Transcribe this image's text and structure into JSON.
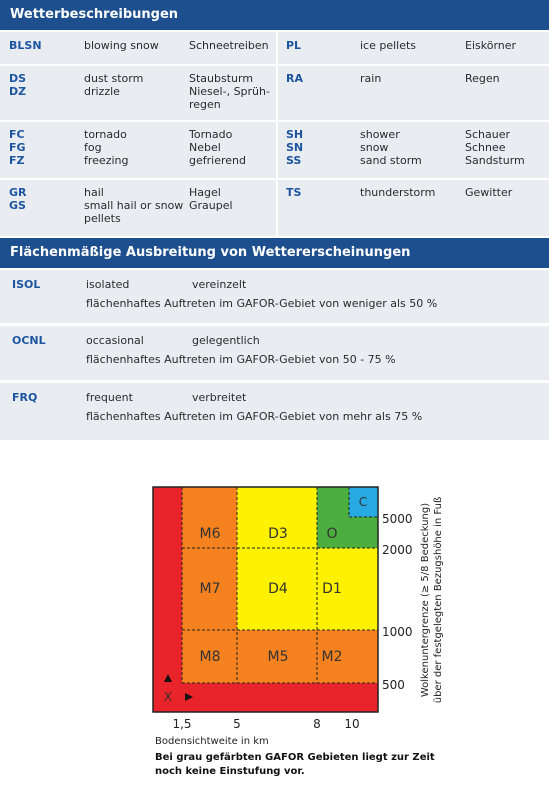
{
  "weather": {
    "title": "Wetterbeschreibungen",
    "rows": [
      {
        "left": {
          "codes": [
            "BLSN"
          ],
          "en": [
            "blowing snow"
          ],
          "de": [
            "Schneetreiben"
          ]
        },
        "right": {
          "codes": [
            "PL"
          ],
          "en": [
            "ice pellets"
          ],
          "de": [
            "Eiskörner"
          ]
        }
      },
      {
        "left": {
          "codes": [
            "DS",
            "DZ"
          ],
          "en": [
            "dust storm",
            "drizzle"
          ],
          "de": [
            "Staubsturm",
            "Niesel-, Sprüh-\nregen"
          ]
        },
        "right": {
          "codes": [
            "RA"
          ],
          "en": [
            "rain"
          ],
          "de": [
            "Regen"
          ]
        }
      },
      {
        "left": {
          "codes": [
            "FC",
            "FG",
            "FZ"
          ],
          "en": [
            "tornado",
            "fog",
            "freezing"
          ],
          "de": [
            "Tornado",
            "Nebel",
            "gefrierend"
          ]
        },
        "right": {
          "codes": [
            "SH",
            "SN",
            "SS"
          ],
          "en": [
            "shower",
            "snow",
            "sand storm"
          ],
          "de": [
            "Schauer",
            "Schnee",
            "Sandsturm"
          ]
        }
      },
      {
        "left": {
          "codes": [
            "GR",
            "GS"
          ],
          "en": [
            "hail",
            "small hail or snow\npellets"
          ],
          "de": [
            "Hagel",
            "Graupel"
          ]
        },
        "right": {
          "codes": [
            "TS"
          ],
          "en": [
            "thunderstorm"
          ],
          "de": [
            "Gewitter"
          ]
        }
      }
    ]
  },
  "coverage": {
    "title": "Flächenmäßige Ausbreitung von Wettererscheinungen",
    "rows": [
      {
        "code": "ISOL",
        "en": "isolated",
        "de": "vereinzelt",
        "description": "flächenhaftes Auftreten im GAFOR-Gebiet von weniger als 50 %"
      },
      {
        "code": "OCNL",
        "en": "occasional",
        "de": "gelegentlich",
        "description": "flächenhaftes Auftreten im GAFOR-Gebiet von 50 - 75 %"
      },
      {
        "code": "FRQ",
        "en": "frequent",
        "de": "verbreitet",
        "description": "flächenhaftes Auftreten im GAFOR-Gebiet von mehr als 75 %"
      }
    ]
  },
  "gafor": {
    "cells": [
      "M6",
      "D3",
      "O",
      "C",
      "M7",
      "D4",
      "D1",
      "M8",
      "M5",
      "M2",
      "X"
    ],
    "x_ticks": [
      "1,5",
      "5",
      "8",
      "10"
    ],
    "y_ticks": [
      "5000",
      "2000",
      "1000",
      "500"
    ],
    "x_axis_title": "Bodensichtweite in km",
    "y_axis_title": [
      "Wolkenuntergrenze (≥ 5/8 Bedeckung)",
      "über der festgelegten Bezugshöhe in Fuß"
    ],
    "note": [
      "Bei grau gefärbten GAFOR Gebieten liegt zur Zeit",
      "noch keine Einstufung vor."
    ]
  }
}
